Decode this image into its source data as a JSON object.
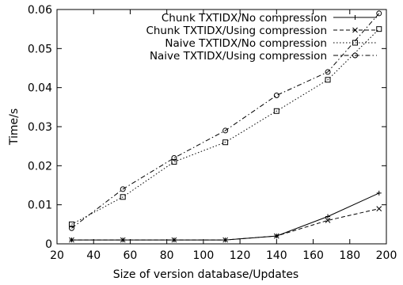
{
  "chart_data": {
    "type": "line",
    "title": "",
    "xlabel": "Size of version database/Updates",
    "ylabel": "Time/s",
    "xlim": [
      20,
      200
    ],
    "ylim": [
      0,
      0.06
    ],
    "xticks": [
      "20",
      "40",
      "60",
      "80",
      "100",
      "120",
      "140",
      "160",
      "180",
      "200"
    ],
    "yticks": [
      "0",
      "0.01",
      "0.02",
      "0.03",
      "0.04",
      "0.05",
      "0.06"
    ],
    "grid": false,
    "legend_position": "top-right",
    "x": [
      28,
      56,
      84,
      112,
      140,
      168,
      196
    ],
    "series": [
      {
        "name": "Chunk TXTIDX/No compression",
        "values": [
          0.001,
          0.001,
          0.001,
          0.001,
          0.002,
          0.007,
          0.013
        ],
        "marker": "plus",
        "dash": "solid"
      },
      {
        "name": "Chunk TXTIDX/Using compression",
        "values": [
          0.001,
          0.001,
          0.001,
          0.001,
          0.002,
          0.006,
          0.009
        ],
        "marker": "cross",
        "dash": "dashed"
      },
      {
        "name": "Naive TXTIDX/No compression",
        "values": [
          0.005,
          0.012,
          0.021,
          0.026,
          0.034,
          0.042,
          0.055
        ],
        "marker": "square",
        "dash": "dotted"
      },
      {
        "name": "Naive TXTIDX/Using compression",
        "values": [
          0.004,
          0.014,
          0.022,
          0.029,
          0.038,
          0.044,
          0.059
        ],
        "marker": "circle",
        "dash": "dashdot"
      }
    ]
  }
}
